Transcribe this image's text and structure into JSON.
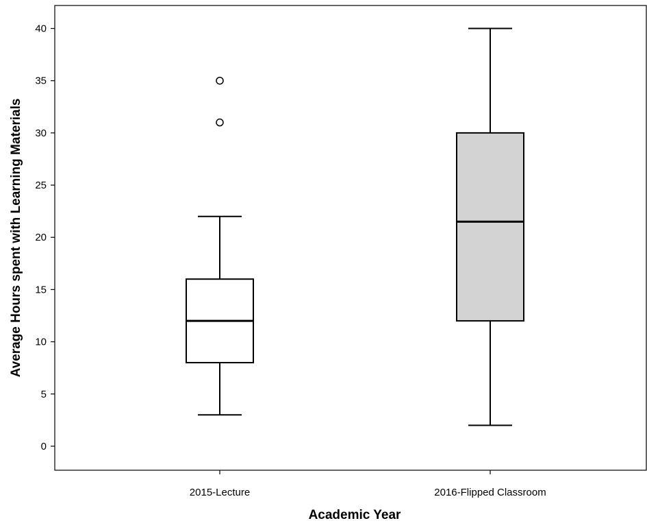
{
  "chart_data": {
    "type": "boxplot",
    "title": "",
    "xlabel": "Academic Year",
    "ylabel": "Average Hours spent with Learning Materials",
    "ylim": [
      -2.3,
      42.2
    ],
    "yticks": [
      0,
      5,
      10,
      15,
      20,
      25,
      30,
      35,
      40
    ],
    "grid": false,
    "legend": "none",
    "categories": [
      "2015-Lecture",
      "2016-Flipped Classroom"
    ],
    "boxes": [
      {
        "category": "2015-Lecture",
        "whisker_low": 3,
        "q1": 8,
        "median": 12,
        "q3": 16,
        "whisker_high": 22,
        "outliers": [
          31,
          35
        ],
        "fill": "#ffffff"
      },
      {
        "category": "2016-Flipped Classroom",
        "whisker_low": 2,
        "q1": 12,
        "median": 21.5,
        "q3": 30,
        "whisker_high": 40,
        "outliers": [],
        "fill": "#d3d3d3"
      }
    ]
  }
}
